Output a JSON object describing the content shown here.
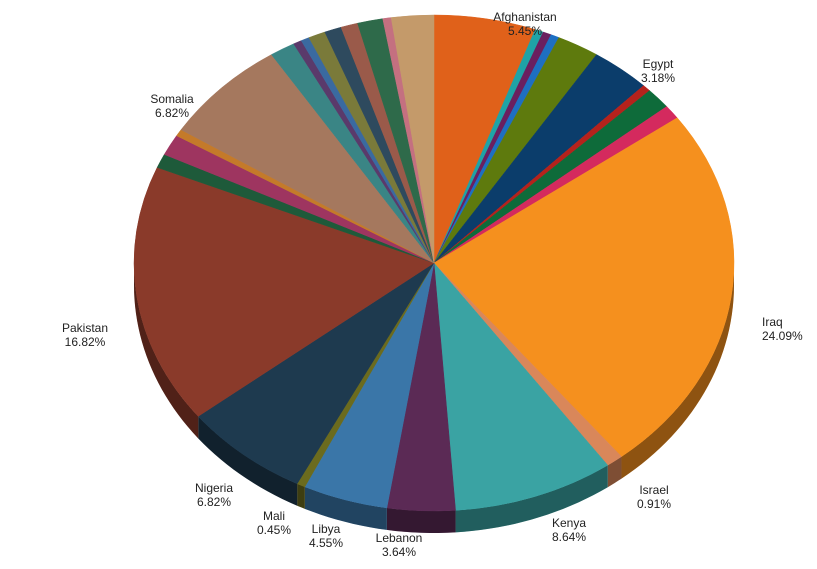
{
  "chart_data": {
    "type": "pie",
    "title": "",
    "slices": [
      {
        "label": "Afghanistan",
        "percent": 5.45,
        "pct_text": "5.45%",
        "color": "#E0611A",
        "labeled": true
      },
      {
        "label": "",
        "percent": 0.45,
        "pct_text": "",
        "color": "#1FA3A6",
        "labeled": false
      },
      {
        "label": "",
        "percent": 0.45,
        "pct_text": "",
        "color": "#6B1F5F",
        "labeled": false
      },
      {
        "label": "",
        "percent": 0.45,
        "pct_text": "",
        "color": "#1E6FC2",
        "labeled": false
      },
      {
        "label": "",
        "percent": 2.27,
        "pct_text": "",
        "color": "#5E7A0D",
        "labeled": false
      },
      {
        "label": "Egypt",
        "percent": 3.18,
        "pct_text": "3.18%",
        "color": "#0B3D6B",
        "labeled": true
      },
      {
        "label": "",
        "percent": 0.45,
        "pct_text": "",
        "color": "#B5221C",
        "labeled": false
      },
      {
        "label": "",
        "percent": 1.36,
        "pct_text": "",
        "color": "#0E6B3A",
        "labeled": false
      },
      {
        "label": "",
        "percent": 0.91,
        "pct_text": "",
        "color": "#D42A5E",
        "labeled": false
      },
      {
        "label": "Iraq",
        "percent": 24.09,
        "pct_text": "24.09%",
        "color": "#F5901E",
        "labeled": true
      },
      {
        "label": "Israel",
        "percent": 0.91,
        "pct_text": "0.91%",
        "color": "#D9875A",
        "labeled": true
      },
      {
        "label": "Kenya",
        "percent": 8.64,
        "pct_text": "8.64%",
        "color": "#3AA3A3",
        "labeled": true
      },
      {
        "label": "Lebanon",
        "percent": 3.64,
        "pct_text": "3.64%",
        "color": "#5B2A55",
        "labeled": true
      },
      {
        "label": "Libya",
        "percent": 4.55,
        "pct_text": "4.55%",
        "color": "#3A76A8",
        "labeled": true
      },
      {
        "label": "Mali",
        "percent": 0.45,
        "pct_text": "0.45%",
        "color": "#6B6B1E",
        "labeled": true
      },
      {
        "label": "Nigeria",
        "percent": 6.82,
        "pct_text": "6.82%",
        "color": "#1E3A4F",
        "labeled": true
      },
      {
        "label": "Pakistan",
        "percent": 16.82,
        "pct_text": "16.82%",
        "color": "#8A3A2A",
        "labeled": true
      },
      {
        "label": "",
        "percent": 0.91,
        "pct_text": "",
        "color": "#1E5A3A",
        "labeled": false
      },
      {
        "label": "",
        "percent": 1.36,
        "pct_text": "",
        "color": "#9E3560",
        "labeled": false
      },
      {
        "label": "",
        "percent": 0.45,
        "pct_text": "",
        "color": "#C47A2A",
        "labeled": false
      },
      {
        "label": "Somalia",
        "percent": 6.82,
        "pct_text": "6.82%",
        "color": "#A5785E",
        "labeled": true
      },
      {
        "label": "",
        "percent": 1.36,
        "pct_text": "",
        "color": "#3A8585",
        "labeled": false
      },
      {
        "label": "",
        "percent": 0.45,
        "pct_text": "",
        "color": "#5A3A6B",
        "labeled": false
      },
      {
        "label": "",
        "percent": 0.45,
        "pct_text": "",
        "color": "#3A6AA0",
        "labeled": false
      },
      {
        "label": "",
        "percent": 0.91,
        "pct_text": "",
        "color": "#7A7A3A",
        "labeled": false
      },
      {
        "label": "",
        "percent": 0.91,
        "pct_text": "",
        "color": "#2E4A5E",
        "labeled": false
      },
      {
        "label": "",
        "percent": 0.91,
        "pct_text": "",
        "color": "#9A5A4A",
        "labeled": false
      },
      {
        "label": "",
        "percent": 1.36,
        "pct_text": "",
        "color": "#2E6A4A",
        "labeled": false
      },
      {
        "label": "",
        "percent": 0.45,
        "pct_text": "",
        "color": "#C47080",
        "labeled": false
      },
      {
        "label": "",
        "percent": 2.27,
        "pct_text": "",
        "color": "#C49A6A",
        "labeled": false
      }
    ]
  }
}
